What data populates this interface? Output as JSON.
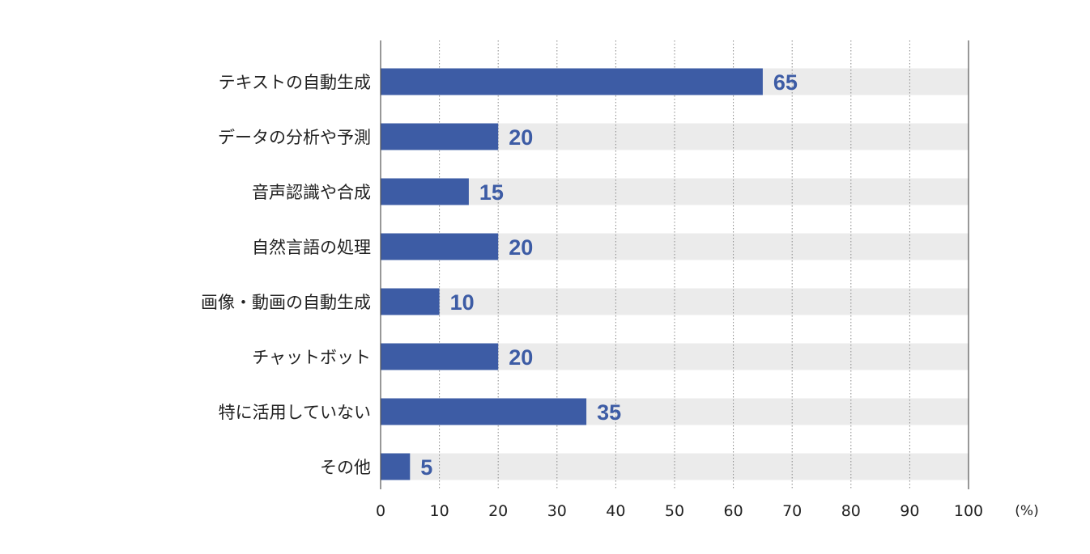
{
  "chart_data": {
    "type": "bar",
    "orientation": "horizontal",
    "categories": [
      "テキストの自動生成",
      "データの分析や予測",
      "音声認識や合成",
      "自然言語の処理",
      "画像・動画の自動生成",
      "チャットボット",
      "特に活用していない",
      "その他"
    ],
    "values": [
      65,
      20,
      15,
      20,
      10,
      20,
      35,
      5
    ],
    "value_labels": [
      "65",
      "20",
      "15",
      "20",
      "10",
      "20",
      "35",
      "5"
    ],
    "xlim": [
      0,
      100
    ],
    "xticks": [
      0,
      10,
      20,
      30,
      40,
      50,
      60,
      70,
      80,
      90,
      100
    ],
    "xtick_labels": [
      "0",
      "10",
      "20",
      "30",
      "40",
      "50",
      "60",
      "70",
      "80",
      "90",
      "100"
    ],
    "unit_label": "(%)",
    "grid": "vertical dotted",
    "colors": {
      "bar": "#3d5ca5",
      "track": "#ebebeb",
      "value_label": "#3d5ca5",
      "axis": "#555555",
      "grid": "#888888",
      "text": "#222222"
    }
  }
}
